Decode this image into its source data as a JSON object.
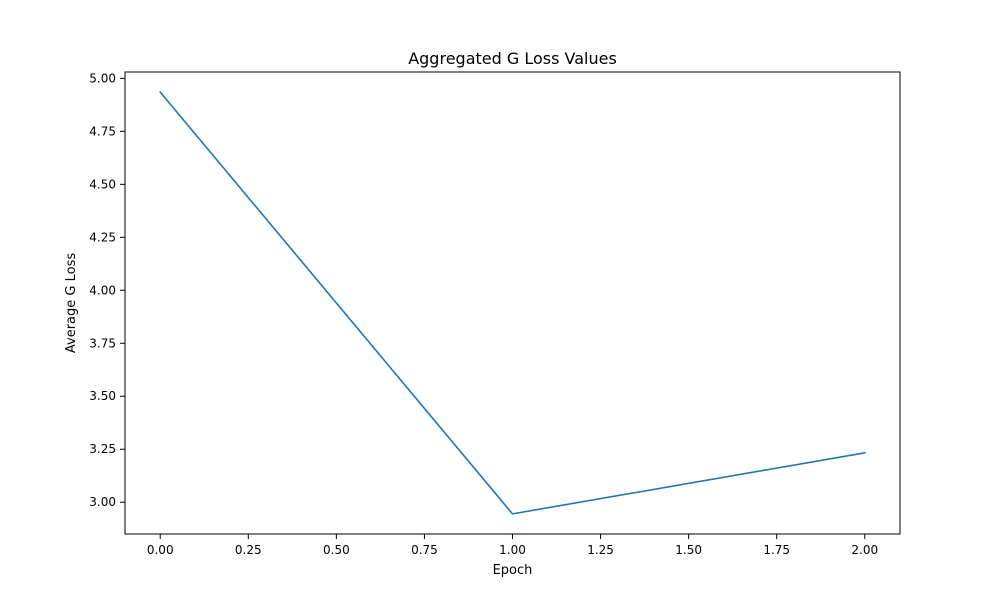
{
  "chart_data": {
    "type": "line",
    "title": "Aggregated G Loss Values",
    "xlabel": "Epoch",
    "ylabel": "Average G Loss",
    "xlim": [
      -0.1,
      2.1
    ],
    "ylim": [
      2.85,
      5.03
    ],
    "x_ticks": [
      0.0,
      0.25,
      0.5,
      0.75,
      1.0,
      1.25,
      1.5,
      1.75,
      2.0
    ],
    "x_tick_labels": [
      "0.00",
      "0.25",
      "0.50",
      "0.75",
      "1.00",
      "1.25",
      "1.50",
      "1.75",
      "2.00"
    ],
    "y_ticks": [
      3.0,
      3.25,
      3.5,
      3.75,
      4.0,
      4.25,
      4.5,
      4.75,
      5.0
    ],
    "y_tick_labels": [
      "3.00",
      "3.25",
      "3.50",
      "3.75",
      "4.00",
      "4.25",
      "4.50",
      "4.75",
      "5.00"
    ],
    "grid": false,
    "series": [
      {
        "color": "#1f77b4",
        "x": [
          0,
          1,
          2
        ],
        "y": [
          4.935,
          2.945,
          3.233
        ]
      }
    ]
  }
}
